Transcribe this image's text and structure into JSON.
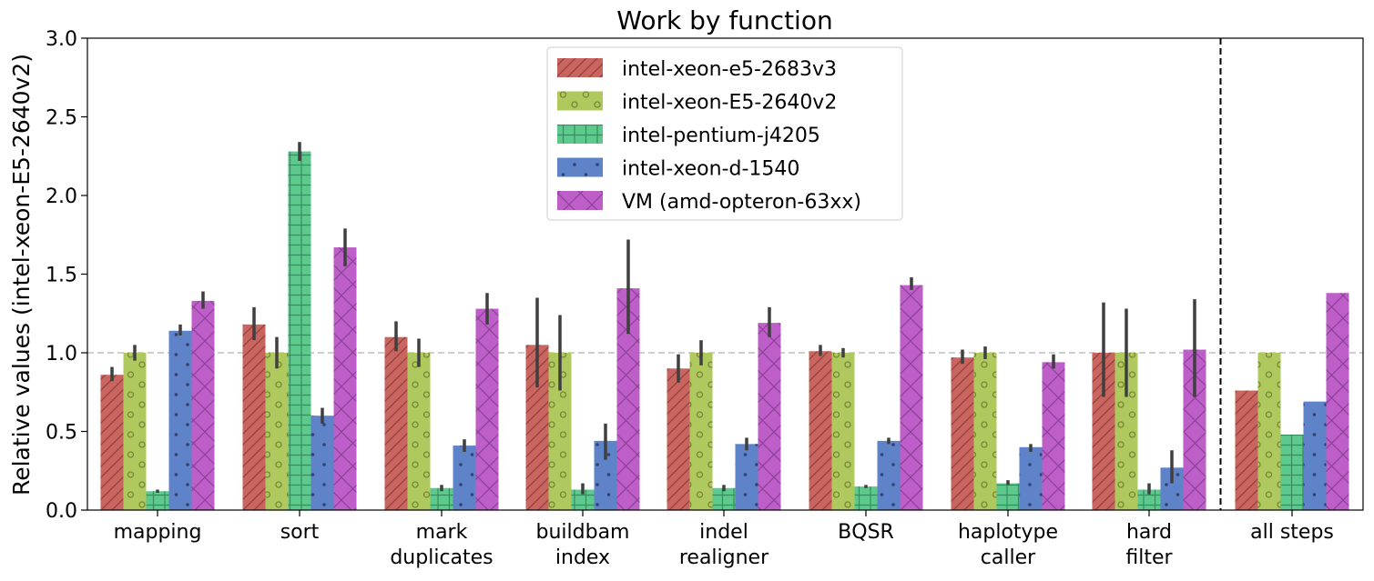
{
  "chart_data": {
    "type": "bar",
    "title": "Work by function",
    "xlabel": "",
    "ylabel": "Relative values (intel-xeon-E5-2640v2)",
    "ylim": [
      0,
      3.0
    ],
    "yticks": [
      "0.0",
      "0.5",
      "1.0",
      "1.5",
      "2.0",
      "2.5",
      "3.0"
    ],
    "grid": false,
    "reference_line": 1.0,
    "legend_position": "top-center",
    "categories": [
      [
        "mapping"
      ],
      [
        "sort"
      ],
      [
        "mark",
        "duplicates"
      ],
      [
        "buildbam",
        "index"
      ],
      [
        "indel",
        "realigner"
      ],
      [
        "BQSR"
      ],
      [
        "haplotype",
        "caller"
      ],
      [
        "hard",
        "filter"
      ],
      [
        "all steps"
      ]
    ],
    "separator_after_category": 8,
    "series": [
      {
        "name": "intel-xeon-e5-2683v3",
        "color": "#c9645e",
        "hatch": "diagonal",
        "values": [
          0.86,
          1.18,
          1.1,
          1.05,
          0.9,
          1.01,
          0.97,
          1.0,
          0.76
        ],
        "error": [
          [
            0.82,
            0.91
          ],
          [
            1.08,
            1.29
          ],
          [
            1.01,
            1.2
          ],
          [
            0.78,
            1.35
          ],
          [
            0.81,
            0.99
          ],
          [
            0.98,
            1.05
          ],
          [
            0.93,
            1.02
          ],
          [
            0.72,
            1.32
          ],
          null
        ]
      },
      {
        "name": "intel-xeon-E5-2640v2",
        "color": "#b0c95e",
        "hatch": "circles",
        "values": [
          1.0,
          1.0,
          1.0,
          1.0,
          1.0,
          1.0,
          1.0,
          1.0,
          1.0
        ],
        "error": [
          [
            0.95,
            1.05
          ],
          [
            0.9,
            1.1
          ],
          [
            0.91,
            1.09
          ],
          [
            0.76,
            1.24
          ],
          [
            0.92,
            1.08
          ],
          [
            0.97,
            1.03
          ],
          [
            0.96,
            1.04
          ],
          [
            0.72,
            1.28
          ],
          null
        ]
      },
      {
        "name": "intel-pentium-j4205",
        "color": "#5ec98d",
        "hatch": "grid",
        "values": [
          0.12,
          2.28,
          0.14,
          0.13,
          0.14,
          0.15,
          0.17,
          0.13,
          0.48
        ],
        "error": [
          [
            0.11,
            0.13
          ],
          [
            2.22,
            2.34
          ],
          [
            0.12,
            0.16
          ],
          [
            0.1,
            0.17
          ],
          [
            0.12,
            0.16
          ],
          [
            0.14,
            0.16
          ],
          [
            0.16,
            0.19
          ],
          [
            0.1,
            0.17
          ],
          null
        ]
      },
      {
        "name": "intel-xeon-d-1540",
        "color": "#5e83c9",
        "hatch": "dots",
        "values": [
          1.14,
          0.6,
          0.41,
          0.44,
          0.42,
          0.44,
          0.4,
          0.27,
          0.69
        ],
        "error": [
          [
            1.11,
            1.18
          ],
          [
            0.55,
            0.65
          ],
          [
            0.37,
            0.45
          ],
          [
            0.32,
            0.55
          ],
          [
            0.38,
            0.46
          ],
          [
            0.42,
            0.46
          ],
          [
            0.37,
            0.42
          ],
          [
            0.17,
            0.38
          ],
          null
        ]
      },
      {
        "name": "VM (amd-opteron-63xx)",
        "color": "#be5ec9",
        "hatch": "crosshatch",
        "values": [
          1.33,
          1.67,
          1.28,
          1.41,
          1.19,
          1.43,
          0.94,
          1.02,
          1.38
        ],
        "error": [
          [
            1.28,
            1.39
          ],
          [
            1.55,
            1.79
          ],
          [
            1.18,
            1.38
          ],
          [
            1.12,
            1.72
          ],
          [
            1.1,
            1.29
          ],
          [
            1.4,
            1.48
          ],
          [
            0.9,
            0.99
          ],
          [
            0.72,
            1.34
          ],
          null
        ]
      }
    ]
  }
}
